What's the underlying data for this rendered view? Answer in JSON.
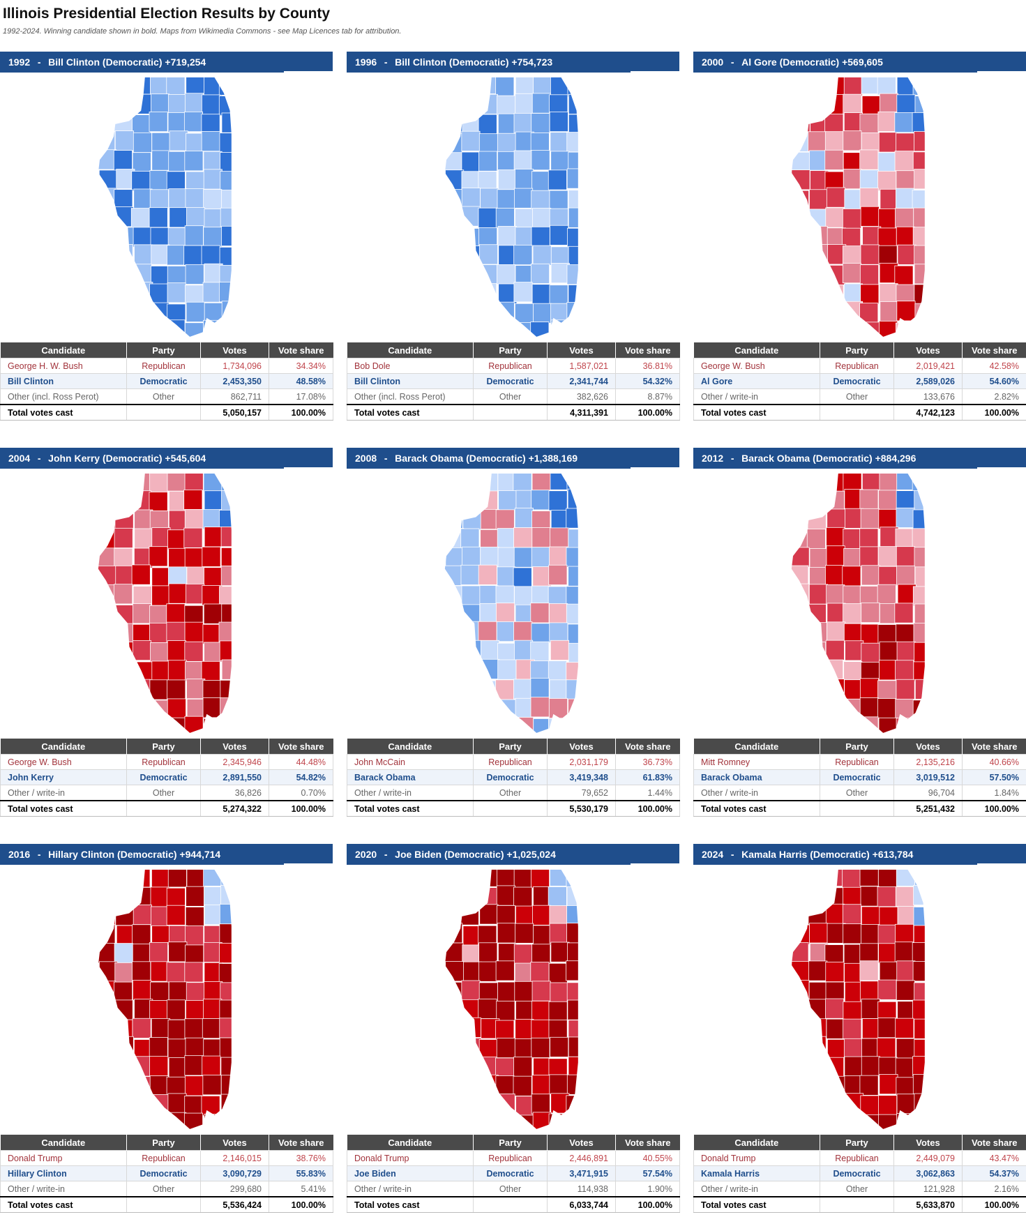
{
  "page": {
    "title": "Illinois Presidential Election Results by County",
    "subtitle": "1992-2024. Winning candidate shown in bold. Maps from Wikimedia Commons - see Map Licences tab for attribution."
  },
  "table_headers": [
    "Candidate",
    "Party",
    "Votes",
    "Vote share"
  ],
  "colors": {
    "header_blue": "#1f4e8c",
    "table_header_gray": "#4a4a4a",
    "republican_text": "#a2333b",
    "democratic_text": "#1f4e8c",
    "map_shades_dem": [
      "#c6dbfb",
      "#9cc0f4",
      "#6fa3ea",
      "#2f72d6"
    ],
    "map_shades_rep": [
      "#f2b3be",
      "#e07f8f",
      "#d6394d",
      "#cc0008",
      "#a00005"
    ]
  },
  "panels": [
    {
      "year": "1992",
      "headline": "Bill Clinton (Democratic) +719,254",
      "map_lean": -0.55,
      "rows": [
        {
          "candidate": "George H. W. Bush",
          "party": "Republican",
          "votes": "1,734,096",
          "share": "34.34%"
        },
        {
          "candidate": "Bill Clinton",
          "party": "Democratic",
          "votes": "2,453,350",
          "share": "48.58%"
        },
        {
          "candidate": "Other (incl. Ross Perot)",
          "party": "Other",
          "votes": "862,711",
          "share": "17.08%"
        },
        {
          "candidate": "Total votes cast",
          "party": "",
          "votes": "5,050,157",
          "share": "100.00%"
        }
      ]
    },
    {
      "year": "1996",
      "headline": "Bill Clinton (Democratic) +754,723",
      "map_lean": -0.45,
      "rows": [
        {
          "candidate": "Bob Dole",
          "party": "Republican",
          "votes": "1,587,021",
          "share": "36.81%"
        },
        {
          "candidate": "Bill Clinton",
          "party": "Democratic",
          "votes": "2,341,744",
          "share": "54.32%"
        },
        {
          "candidate": "Other (incl. Ross Perot)",
          "party": "Other",
          "votes": "382,626",
          "share": "8.87%"
        },
        {
          "candidate": "Total votes cast",
          "party": "",
          "votes": "4,311,391",
          "share": "100.00%"
        }
      ]
    },
    {
      "year": "2000",
      "headline": "Al Gore (Democratic) +569,605",
      "map_lean": 0.35,
      "rows": [
        {
          "candidate": "George W. Bush",
          "party": "Republican",
          "votes": "2,019,421",
          "share": "42.58%"
        },
        {
          "candidate": "Al Gore",
          "party": "Democratic",
          "votes": "2,589,026",
          "share": "54.60%"
        },
        {
          "candidate": "Other / write-in",
          "party": "Other",
          "votes": "133,676",
          "share": "2.82%"
        },
        {
          "candidate": "Total votes cast",
          "party": "",
          "votes": "4,742,123",
          "share": "100.00%"
        }
      ]
    },
    {
      "year": "2004",
      "headline": "John Kerry (Democratic) +545,604",
      "map_lean": 0.55,
      "rows": [
        {
          "candidate": "George W. Bush",
          "party": "Republican",
          "votes": "2,345,946",
          "share": "44.48%"
        },
        {
          "candidate": "John Kerry",
          "party": "Democratic",
          "votes": "2,891,550",
          "share": "54.82%"
        },
        {
          "candidate": "Other / write-in",
          "party": "Other",
          "votes": "36,826",
          "share": "0.70%"
        },
        {
          "candidate": "Total votes cast",
          "party": "",
          "votes": "5,274,322",
          "share": "100.00%"
        }
      ]
    },
    {
      "year": "2008",
      "headline": "Barack Obama (Democratic) +1,388,169",
      "map_lean": -0.15,
      "rows": [
        {
          "candidate": "John McCain",
          "party": "Republican",
          "votes": "2,031,179",
          "share": "36.73%"
        },
        {
          "candidate": "Barack Obama",
          "party": "Democratic",
          "votes": "3,419,348",
          "share": "61.83%"
        },
        {
          "candidate": "Other / write-in",
          "party": "Other",
          "votes": "79,652",
          "share": "1.44%"
        },
        {
          "candidate": "Total votes cast",
          "party": "",
          "votes": "5,530,179",
          "share": "100.00%"
        }
      ]
    },
    {
      "year": "2012",
      "headline": "Barack Obama (Democratic) +884,296",
      "map_lean": 0.5,
      "rows": [
        {
          "candidate": "Mitt Romney",
          "party": "Republican",
          "votes": "2,135,216",
          "share": "40.66%"
        },
        {
          "candidate": "Barack Obama",
          "party": "Democratic",
          "votes": "3,019,512",
          "share": "57.50%"
        },
        {
          "candidate": "Other / write-in",
          "party": "Other",
          "votes": "96,704",
          "share": "1.84%"
        },
        {
          "candidate": "Total votes cast",
          "party": "",
          "votes": "5,251,432",
          "share": "100.00%"
        }
      ]
    },
    {
      "year": "2016",
      "headline": "Hillary Clinton (Democratic) +944,714",
      "map_lean": 0.85,
      "rows": [
        {
          "candidate": "Donald Trump",
          "party": "Republican",
          "votes": "2,146,015",
          "share": "38.76%"
        },
        {
          "candidate": "Hillary Clinton",
          "party": "Democratic",
          "votes": "3,090,729",
          "share": "55.83%"
        },
        {
          "candidate": "Other / write-in",
          "party": "Other",
          "votes": "299,680",
          "share": "5.41%"
        },
        {
          "candidate": "Total votes cast",
          "party": "",
          "votes": "5,536,424",
          "share": "100.00%"
        }
      ]
    },
    {
      "year": "2020",
      "headline": "Joe Biden (Democratic) +1,025,024",
      "map_lean": 0.88,
      "rows": [
        {
          "candidate": "Donald Trump",
          "party": "Republican",
          "votes": "2,446,891",
          "share": "40.55%"
        },
        {
          "candidate": "Joe Biden",
          "party": "Democratic",
          "votes": "3,471,915",
          "share": "57.54%"
        },
        {
          "candidate": "Other / write-in",
          "party": "Other",
          "votes": "114,938",
          "share": "1.90%"
        },
        {
          "candidate": "Total votes cast",
          "party": "",
          "votes": "6,033,744",
          "share": "100.00%"
        }
      ]
    },
    {
      "year": "2024",
      "headline": "Kamala Harris (Democratic) +613,784",
      "map_lean": 0.92,
      "rows": [
        {
          "candidate": "Donald Trump",
          "party": "Republican",
          "votes": "2,449,079",
          "share": "43.47%"
        },
        {
          "candidate": "Kamala Harris",
          "party": "Democratic",
          "votes": "3,062,863",
          "share": "54.37%"
        },
        {
          "candidate": "Other / write-in",
          "party": "Other",
          "votes": "121,928",
          "share": "2.16%"
        },
        {
          "candidate": "Total votes cast",
          "party": "",
          "votes": "5,633,870",
          "share": "100.00%"
        }
      ]
    }
  ]
}
